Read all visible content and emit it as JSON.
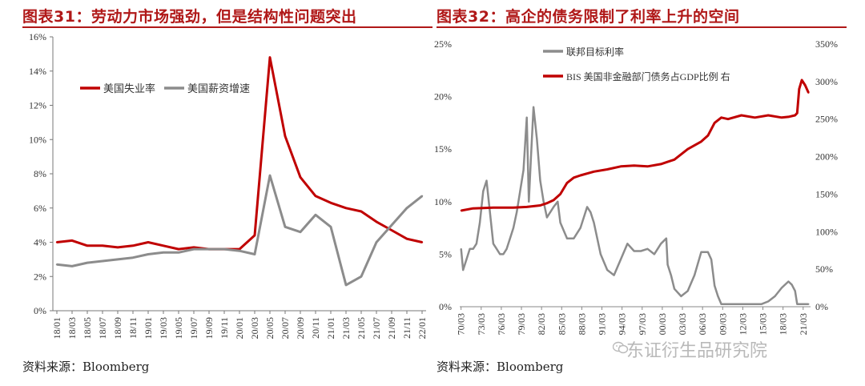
{
  "left": {
    "title": "图表31：劳动力市场强劲，但是结构性问题突出",
    "source": "资料来源：Bloomberg"
  },
  "right": {
    "title": "图表32：高企的债务限制了利率上升的空间",
    "source": "资料来源：Bloomberg"
  },
  "watermark": {
    "text": "东证衍生品研究院",
    "icon": "wechat-icon"
  },
  "colors": {
    "red": "#c00000",
    "gray": "#8c8c8c",
    "title": "#b01818"
  },
  "chart_data": [
    {
      "type": "line",
      "title": "劳动力市场强劲，但是结构性问题突出",
      "categories": [
        "18/01",
        "18/03",
        "18/05",
        "18/07",
        "18/09",
        "18/11",
        "19/01",
        "19/03",
        "19/05",
        "19/07",
        "19/09",
        "19/11",
        "20/01",
        "20/03",
        "20/05",
        "20/07",
        "20/09",
        "20/11",
        "21/01",
        "21/03",
        "21/05",
        "21/07",
        "21/09",
        "21/11",
        "22/01"
      ],
      "ylim": [
        0,
        16
      ],
      "yticks": [
        "0%",
        "2%",
        "4%",
        "6%",
        "8%",
        "10%",
        "12%",
        "14%",
        "16%"
      ],
      "legend_position": "top-left",
      "series": [
        {
          "name": "美国失业率",
          "color": "#c00000",
          "values": [
            4.0,
            4.1,
            3.8,
            3.8,
            3.7,
            3.8,
            4.0,
            3.8,
            3.6,
            3.7,
            3.6,
            3.6,
            3.6,
            4.4,
            14.8,
            10.2,
            7.8,
            6.7,
            6.3,
            6.0,
            5.8,
            5.2,
            4.7,
            4.2,
            4.0
          ]
        },
        {
          "name": "美国薪资增速",
          "color": "#8c8c8c",
          "values": [
            2.7,
            2.6,
            2.8,
            2.9,
            3.0,
            3.1,
            3.3,
            3.4,
            3.4,
            3.6,
            3.6,
            3.6,
            3.5,
            3.3,
            7.9,
            4.9,
            4.6,
            5.6,
            4.9,
            1.5,
            2.0,
            4.0,
            5.0,
            6.0,
            6.7
          ]
        }
      ]
    },
    {
      "type": "line",
      "title": "高企的债务限制了利率上升的空间",
      "categories": [
        "70/03",
        "73/03",
        "76/03",
        "79/03",
        "82/03",
        "85/03",
        "88/03",
        "91/03",
        "94/03",
        "97/03",
        "00/03",
        "03/03",
        "06/03",
        "09/03",
        "12/03",
        "15/03",
        "18/03",
        "21/03"
      ],
      "ylim_left": [
        0,
        25
      ],
      "ylim_right": [
        0,
        350
      ],
      "yticks_left": [
        "0%",
        "5%",
        "10%",
        "15%",
        "20%",
        "25%"
      ],
      "yticks_right": [
        "0%",
        "50%",
        "100%",
        "150%",
        "200%",
        "250%",
        "300%",
        "350%"
      ],
      "legend_position": "top-center",
      "series": [
        {
          "name": "联邦目标利率",
          "axis": "left",
          "color": "#8c8c8c",
          "x": [
            1970.2,
            1970.5,
            1971,
            1971.5,
            1972,
            1972.5,
            1973,
            1973.5,
            1974,
            1974.5,
            1975,
            1975.5,
            1976,
            1976.5,
            1977,
            1977.5,
            1978,
            1978.5,
            1979,
            1979.5,
            1980,
            1980.3,
            1980.6,
            1981,
            1981.5,
            1982,
            1982.5,
            1983,
            1984,
            1984.6,
            1985,
            1986,
            1987,
            1988,
            1989,
            1989.5,
            1990,
            1991,
            1992,
            1993,
            1994,
            1995,
            1996,
            1997,
            1998,
            1999,
            2000,
            2000.8,
            2001,
            2001.5,
            2002,
            2003,
            2004,
            2005,
            2006,
            2007,
            2007.5,
            2008,
            2008.5,
            2009,
            2010,
            2012,
            2014,
            2015,
            2016,
            2017,
            2018,
            2019,
            2019.5,
            2020,
            2020.3,
            2021,
            2021.5,
            2022
          ],
          "values": [
            5.5,
            3.5,
            4.5,
            5.5,
            5.5,
            6,
            8,
            11,
            12,
            9,
            6,
            5.5,
            5,
            5,
            5.5,
            6.5,
            7.5,
            9,
            11,
            13,
            18,
            10,
            14,
            19,
            16,
            12,
            10,
            8.5,
            9.5,
            10,
            8,
            6.5,
            6.5,
            7.5,
            9.5,
            9,
            8,
            5,
            3.5,
            3,
            4.5,
            6,
            5.3,
            5.3,
            5.5,
            5,
            6,
            6.5,
            4,
            3,
            1.7,
            1,
            1.5,
            3,
            5.2,
            5.2,
            4.5,
            2,
            1,
            0.25,
            0.25,
            0.25,
            0.25,
            0.25,
            0.5,
            1,
            1.8,
            2.4,
            2.1,
            1.5,
            0.25,
            0.25,
            0.25,
            0.25
          ]
        },
        {
          "name": "BIS 美国非金融部门债务占GDP比例 右",
          "axis": "right",
          "color": "#c00000",
          "x": [
            1970.2,
            1972,
            1975,
            1978,
            1980,
            1982,
            1983,
            1984,
            1985,
            1986,
            1987,
            1988,
            1990,
            1992,
            1994,
            1996,
            1998,
            2000,
            2001,
            2002,
            2004,
            2006,
            2007,
            2008,
            2009,
            2010,
            2012,
            2014,
            2016,
            2018,
            2019,
            2020,
            2020.3,
            2020.6,
            2021,
            2021.5,
            2022
          ],
          "values": [
            128,
            131,
            132,
            132,
            133,
            135,
            138,
            142,
            150,
            165,
            172,
            175,
            180,
            183,
            187,
            188,
            187,
            190,
            193,
            196,
            210,
            220,
            228,
            245,
            252,
            250,
            255,
            252,
            255,
            252,
            253,
            255,
            258,
            290,
            302,
            295,
            285
          ]
        }
      ]
    }
  ]
}
